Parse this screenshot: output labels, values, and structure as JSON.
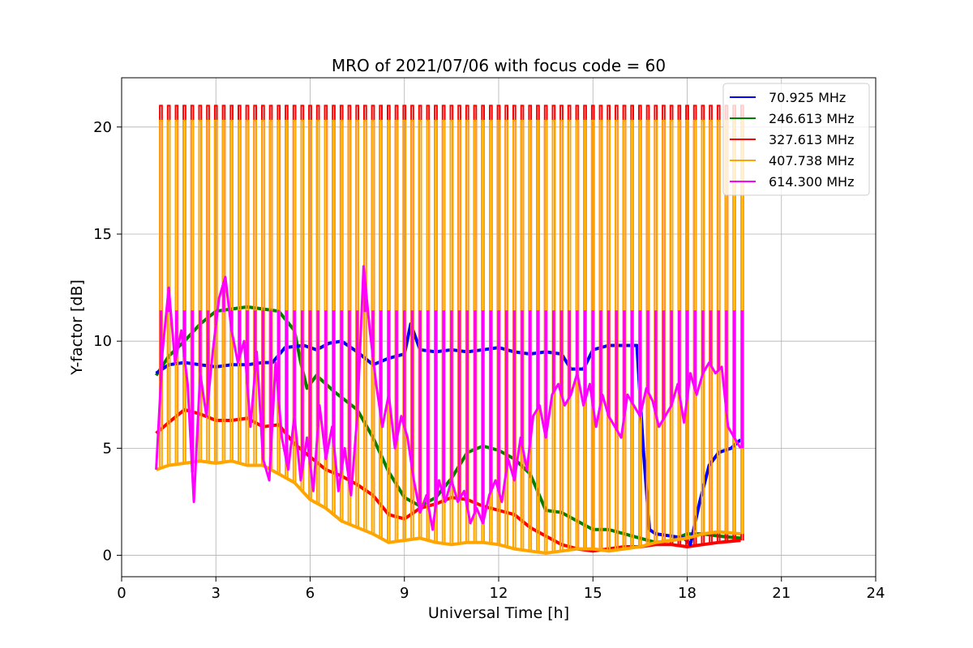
{
  "chart_data": {
    "type": "line",
    "title": "MRO of 2021/07/06 with focus code = 60",
    "xlabel": "Universal Time [h]",
    "ylabel": "Y-factor [dB]",
    "xlim": [
      0,
      24
    ],
    "ylim": [
      -1,
      22.3
    ],
    "xticks": [
      "0",
      "3",
      "6",
      "9",
      "12",
      "15",
      "18",
      "21",
      "24"
    ],
    "yticks": [
      "0",
      "5",
      "10",
      "15",
      "20"
    ],
    "grid": true,
    "legend_position": "top-right",
    "series": [
      {
        "name": "70.925 MHz",
        "color": "#0000ff",
        "x": [
          1.1,
          1.5,
          2.0,
          2.5,
          3.0,
          3.5,
          4.0,
          4.5,
          4.8,
          5.2,
          5.8,
          6.2,
          6.6,
          7.0,
          7.5,
          8.0,
          8.5,
          9.0,
          9.2,
          9.5,
          10.0,
          10.5,
          11.0,
          11.5,
          12.0,
          12.5,
          13.0,
          13.5,
          14.0,
          14.3,
          14.7,
          15.0,
          15.5,
          16.0,
          16.4,
          16.6,
          16.8,
          17.0,
          17.5,
          17.9,
          18.1,
          18.4,
          18.7,
          19.0,
          19.4,
          19.7
        ],
        "y": [
          8.5,
          8.9,
          9.0,
          8.9,
          8.8,
          8.9,
          8.9,
          9.0,
          9.0,
          9.7,
          9.8,
          9.6,
          9.9,
          10.0,
          9.5,
          8.9,
          9.2,
          9.4,
          10.8,
          9.6,
          9.5,
          9.6,
          9.5,
          9.6,
          9.7,
          9.5,
          9.4,
          9.5,
          9.4,
          8.7,
          8.7,
          9.6,
          9.8,
          9.8,
          9.8,
          5.0,
          1.2,
          1.0,
          0.9,
          0.8,
          0.5,
          2.5,
          4.2,
          4.8,
          5.0,
          5.4
        ]
      },
      {
        "name": "246.613 MHz",
        "color": "#008000",
        "x": [
          1.1,
          1.5,
          2.0,
          2.5,
          3.0,
          3.5,
          4.0,
          4.5,
          5.0,
          5.5,
          5.7,
          5.9,
          6.2,
          6.8,
          7.5,
          8.0,
          8.5,
          9.0,
          9.5,
          10.0,
          10.5,
          11.0,
          11.5,
          12.0,
          12.5,
          13.0,
          13.5,
          14.0,
          14.5,
          15.0,
          15.5,
          16.0,
          16.5,
          17.0,
          17.5,
          18.0,
          18.5,
          19.0,
          19.7
        ],
        "y": [
          8.4,
          9.3,
          10.0,
          10.8,
          11.4,
          11.5,
          11.6,
          11.5,
          11.4,
          10.5,
          9.0,
          7.8,
          8.4,
          7.6,
          6.8,
          5.5,
          3.9,
          2.7,
          2.3,
          2.7,
          3.6,
          4.8,
          5.1,
          4.9,
          4.5,
          3.8,
          2.1,
          2.0,
          1.6,
          1.2,
          1.2,
          1.0,
          0.8,
          0.6,
          0.7,
          1.0,
          1.0,
          0.9,
          0.8
        ]
      },
      {
        "name": "327.613 MHz",
        "color": "#ff0000",
        "x": [
          1.1,
          1.5,
          2.0,
          2.5,
          3.0,
          3.5,
          4.0,
          4.5,
          5.0,
          5.5,
          6.0,
          6.5,
          7.0,
          7.5,
          8.0,
          8.5,
          9.0,
          9.5,
          10.0,
          10.5,
          11.0,
          11.5,
          12.0,
          12.5,
          13.0,
          13.5,
          14.0,
          14.5,
          15.0,
          15.5,
          16.0,
          16.5,
          17.0,
          17.5,
          18.0,
          18.5,
          19.0,
          19.7
        ],
        "y": [
          5.7,
          6.2,
          6.8,
          6.6,
          6.3,
          6.3,
          6.4,
          6.0,
          6.1,
          5.2,
          4.6,
          4.0,
          3.7,
          3.3,
          2.8,
          1.9,
          1.7,
          2.2,
          2.4,
          2.7,
          2.6,
          2.3,
          2.1,
          1.9,
          1.3,
          0.9,
          0.5,
          0.3,
          0.2,
          0.3,
          0.4,
          0.4,
          0.5,
          0.5,
          0.4,
          0.5,
          0.6,
          0.7
        ]
      },
      {
        "name": "407.738 MHz",
        "color": "#ffa500",
        "x": [
          1.1,
          1.5,
          2.0,
          2.5,
          3.0,
          3.5,
          4.0,
          4.5,
          5.0,
          5.5,
          6.0,
          6.5,
          7.0,
          7.5,
          8.0,
          8.5,
          9.0,
          9.5,
          10.0,
          10.5,
          11.0,
          11.5,
          12.0,
          12.5,
          13.0,
          13.5,
          14.0,
          14.5,
          15.0,
          15.5,
          16.0,
          16.5,
          17.0,
          17.5,
          18.0,
          18.5,
          19.0,
          19.7
        ],
        "y": [
          4.0,
          4.2,
          4.3,
          4.4,
          4.3,
          4.4,
          4.2,
          4.2,
          3.8,
          3.4,
          2.6,
          2.2,
          1.6,
          1.3,
          1.0,
          0.6,
          0.7,
          0.8,
          0.6,
          0.5,
          0.6,
          0.6,
          0.5,
          0.3,
          0.2,
          0.1,
          0.2,
          0.3,
          0.3,
          0.2,
          0.3,
          0.4,
          0.6,
          0.7,
          0.8,
          1.0,
          1.1,
          1.0
        ],
        "pulse_peak": 20.3,
        "pulse_plateau": 11.4
      },
      {
        "name": "614.300 MHz",
        "color": "#ff00ff",
        "x": [
          1.1,
          1.3,
          1.5,
          1.7,
          1.9,
          2.1,
          2.3,
          2.5,
          2.7,
          2.9,
          3.1,
          3.3,
          3.5,
          3.7,
          3.9,
          4.1,
          4.3,
          4.5,
          4.7,
          4.9,
          5.1,
          5.3,
          5.5,
          5.7,
          5.9,
          6.1,
          6.3,
          6.5,
          6.7,
          6.9,
          7.1,
          7.3,
          7.5,
          7.7,
          7.9,
          8.1,
          8.3,
          8.5,
          8.7,
          8.9,
          9.1,
          9.3,
          9.5,
          9.7,
          9.9,
          10.1,
          10.3,
          10.5,
          10.7,
          10.9,
          11.1,
          11.3,
          11.5,
          11.7,
          11.9,
          12.1,
          12.3,
          12.5,
          12.7,
          12.9,
          13.1,
          13.3,
          13.5,
          13.7,
          13.9,
          14.1,
          14.3,
          14.5,
          14.7,
          14.9,
          15.1,
          15.3,
          15.5,
          15.7,
          15.9,
          16.1,
          16.3,
          16.5,
          16.7,
          16.9,
          17.1,
          17.3,
          17.5,
          17.7,
          17.9,
          18.1,
          18.3,
          18.5,
          18.7,
          18.9,
          19.1,
          19.3,
          19.5,
          19.7
        ],
        "y": [
          4.0,
          9.5,
          12.5,
          9.0,
          10.5,
          8.0,
          2.5,
          8.5,
          6.5,
          9.5,
          12.0,
          13.0,
          10.5,
          9.0,
          10.0,
          6.0,
          9.5,
          4.5,
          3.5,
          9.0,
          5.5,
          4.0,
          6.5,
          3.5,
          5.5,
          3.0,
          7.0,
          4.5,
          6.0,
          3.0,
          5.0,
          2.8,
          6.5,
          13.5,
          10.5,
          8.0,
          6.0,
          7.5,
          5.0,
          6.5,
          5.5,
          3.5,
          2.0,
          2.8,
          1.2,
          3.5,
          2.5,
          3.5,
          2.5,
          3.0,
          1.5,
          2.2,
          1.5,
          2.8,
          3.5,
          2.5,
          4.5,
          3.5,
          5.5,
          4.0,
          6.5,
          7.0,
          5.5,
          7.5,
          8.0,
          7.0,
          7.5,
          8.5,
          7.0,
          8.0,
          6.0,
          7.5,
          6.5,
          6.0,
          5.5,
          7.5,
          7.0,
          6.5,
          7.8,
          7.2,
          6.0,
          6.5,
          7.0,
          8.0,
          6.2,
          8.5,
          7.5,
          8.5,
          9.0,
          8.5,
          8.8,
          6.0,
          5.5,
          5.0
        ]
      }
    ],
    "pulses": {
      "start_h": 1.25,
      "end_h": 19.75,
      "period_h": 0.25,
      "red_peak": 21.0
    }
  }
}
